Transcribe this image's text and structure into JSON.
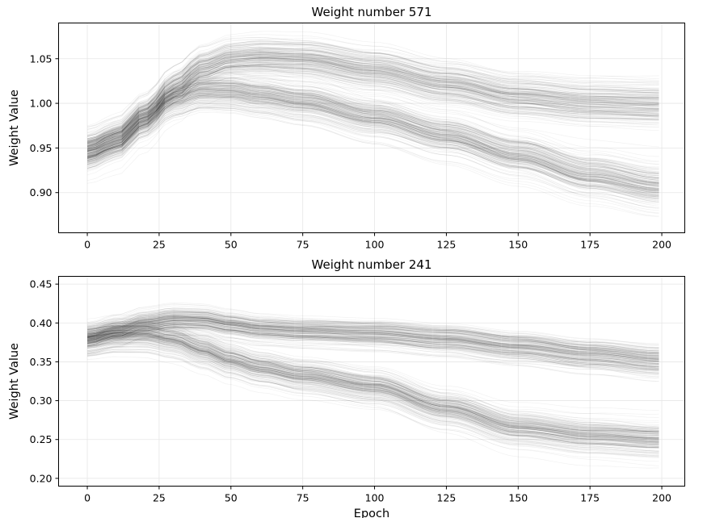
{
  "figure": {
    "background": "#ffffff",
    "line_color": "#000000",
    "grid_color": "#e6e6e6"
  },
  "chart_data": [
    {
      "type": "line",
      "title": "Weight number 571",
      "xlabel": "",
      "ylabel": "Weight Value",
      "xlim": [
        -10,
        208
      ],
      "ylim": [
        0.855,
        1.09
      ],
      "xticks": [
        0,
        25,
        50,
        75,
        100,
        125,
        150,
        175,
        200
      ],
      "xtick_labels": [
        "0",
        "25",
        "50",
        "75",
        "100",
        "125",
        "150",
        "175",
        "200"
      ],
      "yticks": [
        0.9,
        0.95,
        1.0,
        1.05
      ],
      "ytick_labels": [
        "0.90",
        "0.95",
        "1.00",
        "1.05"
      ],
      "grid": true,
      "legend": "none",
      "line_color": "#000000",
      "num_traces_per_cluster": 180,
      "x_range": [
        0,
        199
      ],
      "clusters": [
        {
          "x": [
            0,
            10,
            20,
            30,
            40,
            50,
            60,
            75,
            100,
            125,
            150,
            175,
            199
          ],
          "y": [
            0.947,
            0.958,
            0.985,
            1.017,
            1.04,
            1.05,
            1.052,
            1.05,
            1.038,
            1.022,
            1.008,
            1.001,
            0.999
          ],
          "spread": 0.013
        },
        {
          "x": [
            0,
            10,
            20,
            30,
            40,
            50,
            60,
            75,
            100,
            125,
            150,
            175,
            199
          ],
          "y": [
            0.945,
            0.958,
            0.982,
            1.004,
            1.013,
            1.012,
            1.007,
            1.0,
            0.982,
            0.962,
            0.94,
            0.918,
            0.905
          ],
          "spread": 0.013
        }
      ]
    },
    {
      "type": "line",
      "title": "Weight number 241",
      "xlabel": "Epoch",
      "ylabel": "Weight Value",
      "xlim": [
        -10,
        208
      ],
      "ylim": [
        0.19,
        0.46
      ],
      "xticks": [
        0,
        25,
        50,
        75,
        100,
        125,
        150,
        175,
        200
      ],
      "xtick_labels": [
        "0",
        "25",
        "50",
        "75",
        "100",
        "125",
        "150",
        "175",
        "200"
      ],
      "yticks": [
        0.2,
        0.25,
        0.3,
        0.35,
        0.4,
        0.45
      ],
      "ytick_labels": [
        "0.20",
        "0.25",
        "0.30",
        "0.35",
        "0.40",
        "0.45"
      ],
      "grid": true,
      "legend": "none",
      "line_color": "#000000",
      "num_traces_per_cluster": 180,
      "x_range": [
        0,
        199
      ],
      "clusters": [
        {
          "x": [
            0,
            10,
            20,
            30,
            40,
            50,
            60,
            75,
            100,
            125,
            150,
            175,
            199
          ],
          "y": [
            0.38,
            0.39,
            0.4,
            0.405,
            0.404,
            0.398,
            0.393,
            0.39,
            0.387,
            0.38,
            0.37,
            0.36,
            0.352
          ],
          "spread": 0.012
        },
        {
          "x": [
            0,
            10,
            20,
            30,
            40,
            50,
            60,
            75,
            100,
            125,
            150,
            175,
            199
          ],
          "y": [
            0.38,
            0.385,
            0.385,
            0.378,
            0.365,
            0.352,
            0.342,
            0.332,
            0.318,
            0.29,
            0.265,
            0.255,
            0.25
          ],
          "spread": 0.012
        }
      ]
    }
  ]
}
